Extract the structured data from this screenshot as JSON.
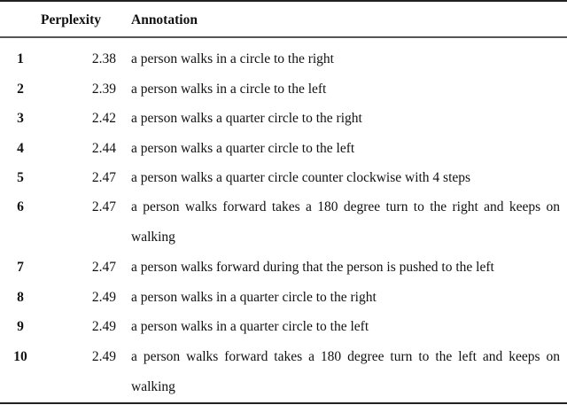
{
  "table": {
    "headers": {
      "rank": "",
      "perplexity": "Perplexity",
      "annotation": "Annotation"
    },
    "rows": [
      {
        "rank": "1",
        "perplexity": "2.38",
        "annotation": "a person walks in a circle to the right"
      },
      {
        "rank": "2",
        "perplexity": "2.39",
        "annotation": "a person walks in a circle to the left"
      },
      {
        "rank": "3",
        "perplexity": "2.42",
        "annotation": "a person walks a quarter circle to the right"
      },
      {
        "rank": "4",
        "perplexity": "2.44",
        "annotation": "a person walks a quarter circle to the left"
      },
      {
        "rank": "5",
        "perplexity": "2.47",
        "annotation": "a person walks a quarter circle counter clockwise with 4 steps"
      },
      {
        "rank": "6",
        "perplexity": "2.47",
        "annotation": "a person walks forward takes a 180 degree turn to the right and keeps on walking"
      },
      {
        "rank": "7",
        "perplexity": "2.47",
        "annotation": "a person walks forward during that the person is pushed to the left"
      },
      {
        "rank": "8",
        "perplexity": "2.49",
        "annotation": "a person walks in a quarter circle to the right"
      },
      {
        "rank": "9",
        "perplexity": "2.49",
        "annotation": "a person walks in a quarter circle to the left"
      },
      {
        "rank": "10",
        "perplexity": "2.49",
        "annotation": "a person walks forward takes a 180 degree turn to the left and keeps on walking"
      }
    ]
  }
}
